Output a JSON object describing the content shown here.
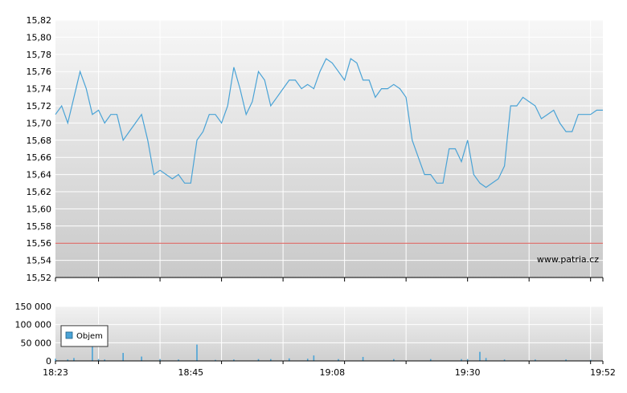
{
  "watermark": "www.patria.cz",
  "chart_data": [
    {
      "type": "line",
      "series": [
        {
          "x": [
            "18:23",
            "18:24",
            "18:25",
            "18:26",
            "18:27",
            "18:28",
            "18:29",
            "18:30",
            "18:31",
            "18:32",
            "18:33",
            "18:34",
            "18:35",
            "18:36",
            "18:37",
            "18:38",
            "18:39",
            "18:40",
            "18:41",
            "18:42",
            "18:43",
            "18:44",
            "18:45",
            "18:46",
            "18:47",
            "18:48",
            "18:49",
            "18:50",
            "18:51",
            "18:52",
            "18:53",
            "18:54",
            "18:55",
            "18:56",
            "18:57",
            "18:58",
            "18:59",
            "19:00",
            "19:01",
            "19:02",
            "19:03",
            "19:04",
            "19:05",
            "19:06",
            "19:07",
            "19:08",
            "19:09",
            "19:10",
            "19:11",
            "19:12",
            "19:13",
            "19:14",
            "19:15",
            "19:16",
            "19:17",
            "19:18",
            "19:19",
            "19:20",
            "19:21",
            "19:22",
            "19:23",
            "19:24",
            "19:25",
            "19:26",
            "19:27",
            "19:28",
            "19:29",
            "19:30",
            "19:31",
            "19:32",
            "19:33",
            "19:34",
            "19:35",
            "19:36",
            "19:37",
            "19:38",
            "19:39",
            "19:40",
            "19:41",
            "19:42",
            "19:43",
            "19:44",
            "19:45",
            "19:46",
            "19:47",
            "19:48",
            "19:49",
            "19:50",
            "19:51",
            "19:52"
          ],
          "values": [
            15.71,
            15.72,
            15.7,
            15.73,
            15.76,
            15.74,
            15.71,
            15.715,
            15.7,
            15.71,
            15.71,
            15.68,
            15.69,
            15.7,
            15.71,
            15.68,
            15.64,
            15.645,
            15.64,
            15.635,
            15.64,
            15.63,
            15.63,
            15.68,
            15.69,
            15.71,
            15.71,
            15.7,
            15.72,
            15.765,
            15.74,
            15.71,
            15.725,
            15.76,
            15.75,
            15.72,
            15.73,
            15.74,
            15.75,
            15.75,
            15.74,
            15.745,
            15.74,
            15.76,
            15.775,
            15.77,
            15.76,
            15.75,
            15.775,
            15.77,
            15.75,
            15.75,
            15.73,
            15.74,
            15.74,
            15.745,
            15.74,
            15.73,
            15.68,
            15.66,
            15.64,
            15.64,
            15.63,
            15.63,
            15.67,
            15.67,
            15.655,
            15.68,
            15.64,
            15.63,
            15.625,
            15.63,
            15.635,
            15.65,
            15.72,
            15.72,
            15.73,
            15.725,
            15.72,
            15.705,
            15.71,
            15.715,
            15.7,
            15.69,
            15.69,
            15.71,
            15.71,
            15.71,
            15.715,
            15.715
          ]
        }
      ],
      "reference_line": 15.56,
      "ylim": [
        15.52,
        15.82
      ],
      "y_ticks": [
        "15,52",
        "15,54",
        "15,56",
        "15,58",
        "15,60",
        "15,62",
        "15,64",
        "15,66",
        "15,68",
        "15,70",
        "15,72",
        "15,74",
        "15,76",
        "15,78",
        "15,80",
        "15,82"
      ],
      "grid": true,
      "colors": {
        "line": "#4aa3d6",
        "reference": "#d9534f",
        "grid": "#ffffff",
        "bg_top": "#f7f7f7",
        "bg_bottom": "#c9c9c9"
      }
    },
    {
      "type": "bar",
      "series": [
        {
          "name": "Objem",
          "bars": [
            {
              "x": "18:23",
              "value": 6000
            },
            {
              "x": "18:25",
              "value": 4000
            },
            {
              "x": "18:26",
              "value": 8000
            },
            {
              "x": "18:29",
              "value": 90000
            },
            {
              "x": "18:30",
              "value": 5000
            },
            {
              "x": "18:31",
              "value": 4000
            },
            {
              "x": "18:34",
              "value": 22000
            },
            {
              "x": "18:37",
              "value": 12000
            },
            {
              "x": "18:40",
              "value": 5000
            },
            {
              "x": "18:43",
              "value": 4000
            },
            {
              "x": "18:46",
              "value": 45000
            },
            {
              "x": "18:49",
              "value": 3000
            },
            {
              "x": "18:52",
              "value": 4000
            },
            {
              "x": "18:56",
              "value": 5000
            },
            {
              "x": "18:58",
              "value": 5000
            },
            {
              "x": "19:01",
              "value": 7000
            },
            {
              "x": "19:04",
              "value": 6000
            },
            {
              "x": "19:05",
              "value": 15000
            },
            {
              "x": "19:09",
              "value": 5000
            },
            {
              "x": "19:13",
              "value": 11000
            },
            {
              "x": "19:18",
              "value": 5000
            },
            {
              "x": "19:24",
              "value": 5000
            },
            {
              "x": "19:29",
              "value": 5000
            },
            {
              "x": "19:30",
              "value": 5000
            },
            {
              "x": "19:32",
              "value": 25000
            },
            {
              "x": "19:33",
              "value": 8000
            },
            {
              "x": "19:36",
              "value": 4000
            },
            {
              "x": "19:41",
              "value": 4000
            },
            {
              "x": "19:46",
              "value": 4000
            },
            {
              "x": "19:50",
              "value": 3000
            }
          ]
        }
      ],
      "ylim": [
        0,
        150000
      ],
      "y_ticks": [
        "0",
        "50 000",
        "100 000",
        "150 000"
      ],
      "x_ticks": [
        "18:23",
        "18:45",
        "19:08",
        "19:30",
        "19:52"
      ],
      "legend": "top-left",
      "colors": {
        "bar": "#4aa3d6"
      }
    }
  ]
}
